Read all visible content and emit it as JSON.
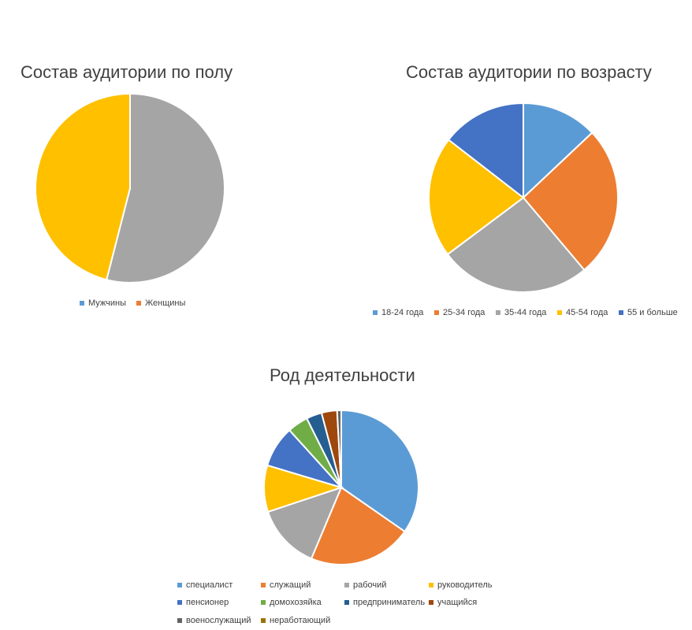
{
  "chart_data": [
    {
      "type": "pie",
      "title": "Состав аудитории по полу",
      "categories": [
        "Мужчины",
        "Женщины"
      ],
      "values": [
        54,
        46
      ],
      "slice_colors": [
        "#A5A5A5",
        "#FFC000"
      ],
      "legend": [
        {
          "label": "Мужчины",
          "color": "#5B9BD5"
        },
        {
          "label": "Женщины",
          "color": "#ED7D31"
        }
      ],
      "legend_position": "bottom"
    },
    {
      "type": "pie",
      "title": "Состав аудитории по возрасту",
      "categories": [
        "18-24 года",
        "25-34 года",
        "35-44 года",
        "45-54 года",
        "55 и больше"
      ],
      "values": [
        12.5,
        25,
        25,
        20,
        14
      ],
      "slice_colors": [
        "#5B9BD5",
        "#ED7D31",
        "#A5A5A5",
        "#FFC000",
        "#4472C4"
      ],
      "legend_position": "bottom"
    },
    {
      "type": "pie",
      "title": "Род деятельности",
      "categories": [
        "специалист",
        "служащий",
        "рабочий",
        "руководитель",
        "пенсионер",
        "домохозяйка",
        "предприниматель",
        "учащийся",
        "военослужащий",
        "неработающий"
      ],
      "values": [
        32,
        20,
        12.5,
        9,
        8,
        4,
        3,
        3,
        0.8,
        0
      ],
      "slice_colors": [
        "#5B9BD5",
        "#ED7D31",
        "#A5A5A5",
        "#FFC000",
        "#4472C4",
        "#70AD47",
        "#255E91",
        "#9E480E",
        "#636363",
        "#997300"
      ],
      "legend_position": "bottom"
    }
  ]
}
